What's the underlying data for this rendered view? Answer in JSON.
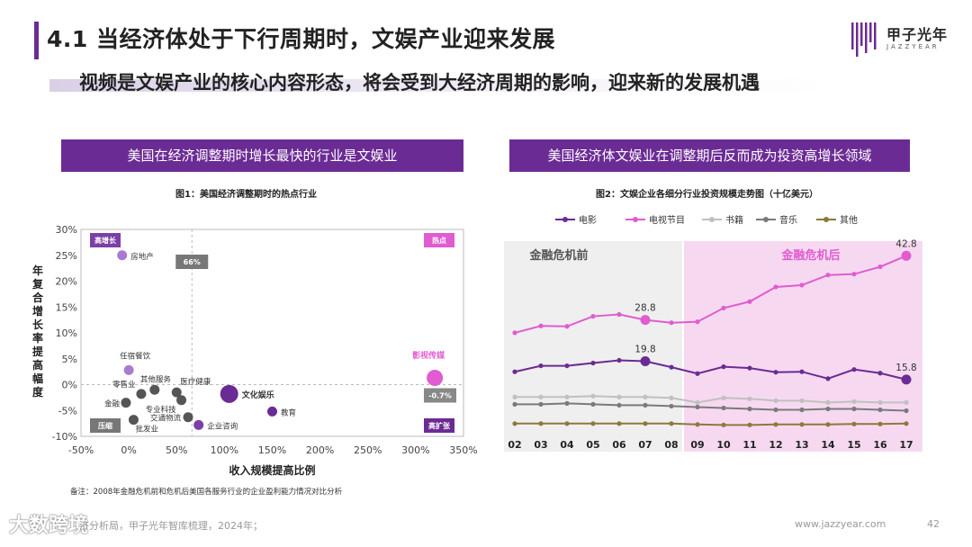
{
  "header": {
    "title": "4.1 当经济体处于下行周期时，文娱产业迎来发展",
    "subtitle": "视频是文娱产业的核心内容形态，将会受到大经济周期的影响，迎来新的发展机遇",
    "logo_cn": "甲子光年",
    "logo_en": "JAZZYEAR"
  },
  "left_panel": {
    "banner": "美国在经济调整期时增长最快的行业是文娱业",
    "fig_title": "图1：美国经济调整期时的热点行业"
  },
  "right_panel": {
    "banner": "美国经济体文娱业在调整期后反而成为投资高增长领域",
    "fig_title": "图2：文娱企业各细分行业投资规模走势图（十亿美元）"
  },
  "footer": {
    "note": "备注：2008年金融危机前和危机后美国各服务行业的企业盈利能力情况对比分析",
    "source": "济分析局，甲子光年智库梳理，2024年；",
    "url": "www.jazzyear.com",
    "page": "42",
    "brand_watermark": "大数跨境"
  },
  "chart_data": [
    {
      "type": "scatter",
      "title": "图1：美国经济调整期时的热点行业",
      "xlabel": "收入规模提高比例",
      "ylabel": "年复合增长率提高幅度",
      "xlim": [
        -50,
        350
      ],
      "ylim": [
        -10,
        30
      ],
      "x_ticks": [
        "-50%",
        "0%",
        "50%",
        "100%",
        "150%",
        "200%",
        "250%",
        "300%",
        "350%"
      ],
      "y_ticks": [
        "30%",
        "25%",
        "20%",
        "15%",
        "10%",
        "5%",
        "0%",
        "-5%",
        "-10%"
      ],
      "quadrant_labels": {
        "top_left": "高增长",
        "top_right": "热点",
        "bottom_left": "压缩",
        "bottom_right": "高扩张"
      },
      "reference_labels": {
        "x_ref": "66%",
        "y_ref": "-0.7%"
      },
      "points": [
        {
          "label": "房地产",
          "x": -7,
          "y": 25,
          "color": "#a97bd0"
        },
        {
          "label": "任宿餐饮",
          "x": 0,
          "y": 2.8,
          "color": "#a97bd0"
        },
        {
          "label": "其他服务",
          "x": 27,
          "y": -1,
          "color": "#555555"
        },
        {
          "label": "零售业",
          "x": 13,
          "y": -1.8,
          "color": "#555555"
        },
        {
          "label": "金融",
          "x": -3,
          "y": -3.5,
          "color": "#555555"
        },
        {
          "label": "医疗健康",
          "x": 50,
          "y": -1.5,
          "color": "#555555"
        },
        {
          "label": "专业科技",
          "x": 55,
          "y": -3,
          "color": "#555555"
        },
        {
          "label": "批发业",
          "x": 5,
          "y": -6.8,
          "color": "#555555"
        },
        {
          "label": "交通物流",
          "x": 62,
          "y": -6.3,
          "color": "#555555"
        },
        {
          "label": "企业咨询",
          "x": 73,
          "y": -7.8,
          "color": "#7b3fa6"
        },
        {
          "label": "文化娱乐",
          "x": 105,
          "y": -1.8,
          "color": "#6b2b94"
        },
        {
          "label": "教育",
          "x": 150,
          "y": -5.2,
          "color": "#6b2b94"
        },
        {
          "label": "影视传媒",
          "x": 320,
          "y": 1.3,
          "color": "#e05cd0"
        }
      ]
    },
    {
      "type": "line",
      "title": "图2：文娱企业各细分行业投资规模走势图（十亿美元）",
      "categories": [
        "02",
        "03",
        "04",
        "05",
        "06",
        "07",
        "08",
        "09",
        "10",
        "11",
        "12",
        "13",
        "14",
        "15",
        "16",
        "17"
      ],
      "region_labels": {
        "before": "金融危机前",
        "after": "金融危机后"
      },
      "series": [
        {
          "name": "电影",
          "color": "#6b2b94",
          "values": [
            17.5,
            18.8,
            18.8,
            19.4,
            20.0,
            19.8,
            18.5,
            17.1,
            18.6,
            18.3,
            17.4,
            17.5,
            16.0,
            18.0,
            17.2,
            15.8
          ],
          "labelled": {
            "07": "19.8",
            "17": "15.8"
          }
        },
        {
          "name": "电视节目",
          "color": "#e05cd0",
          "values": [
            26.0,
            27.5,
            27.4,
            29.6,
            30.0,
            28.8,
            28.2,
            28.4,
            31.4,
            32.8,
            36.0,
            36.4,
            38.6,
            38.8,
            40.4,
            42.8
          ],
          "labelled": {
            "07": "28.8",
            "17": "42.8"
          }
        },
        {
          "name": "书籍",
          "color": "#c0c0c0",
          "values": [
            12.0,
            12.0,
            12.0,
            12.2,
            12.0,
            12.0,
            11.8,
            10.8,
            11.8,
            11.6,
            11.2,
            11.2,
            10.8,
            11.0,
            10.8,
            10.8
          ]
        },
        {
          "name": "音乐",
          "color": "#7a7a7a",
          "values": [
            10.4,
            10.4,
            10.6,
            10.4,
            10.2,
            10.2,
            10.0,
            9.8,
            9.6,
            9.4,
            9.2,
            9.2,
            9.4,
            9.4,
            9.2,
            9.0
          ]
        },
        {
          "name": "其他",
          "color": "#8d7a3a",
          "values": [
            6.2,
            6.2,
            6.2,
            6.2,
            6.2,
            6.2,
            6.2,
            6.0,
            5.9,
            5.9,
            6.0,
            6.0,
            6.0,
            6.1,
            6.1,
            6.2
          ]
        }
      ]
    }
  ]
}
